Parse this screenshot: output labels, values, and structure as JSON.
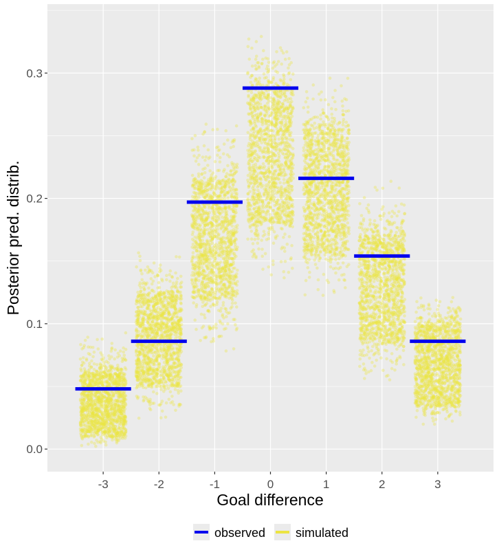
{
  "chart_data": {
    "type": "scatter",
    "title": "",
    "xlabel": "Goal difference",
    "ylabel": "Posterior pred. distrib.",
    "categories": [
      "-3",
      "-2",
      "-1",
      "0",
      "1",
      "2",
      "3"
    ],
    "xlim": [
      -4.0,
      4.0
    ],
    "ylim": [
      -0.018,
      0.355
    ],
    "x_ticks": [
      "-3",
      "-2",
      "-1",
      "0",
      "1",
      "2",
      "3"
    ],
    "y_ticks": [
      0.0,
      0.1,
      0.2,
      0.3
    ],
    "y_tick_labels": [
      "0.0",
      "0.1",
      "0.2",
      "0.3"
    ],
    "grid": true,
    "legend_position": "bottom",
    "series": [
      {
        "name": "observed",
        "kind": "segment",
        "color": "#0000ee",
        "values": [
          0.048,
          0.086,
          0.197,
          0.288,
          0.216,
          0.154,
          0.086
        ]
      },
      {
        "name": "simulated",
        "kind": "jittered points",
        "color": "#ece443",
        "simulated_mean": [
          0.033,
          0.09,
          0.163,
          0.234,
          0.203,
          0.126,
          0.067
        ],
        "simulated_core_range": [
          [
            0.01,
            0.06
          ],
          [
            0.05,
            0.125
          ],
          [
            0.12,
            0.215
          ],
          [
            0.18,
            0.29
          ],
          [
            0.155,
            0.255
          ],
          [
            0.085,
            0.17
          ],
          [
            0.035,
            0.1
          ]
        ],
        "simulated_full_range": [
          [
            0.0,
            0.095
          ],
          [
            0.02,
            0.165
          ],
          [
            0.07,
            0.265
          ],
          [
            0.13,
            0.335
          ],
          [
            0.12,
            0.3
          ],
          [
            0.05,
            0.215
          ],
          [
            0.015,
            0.125
          ]
        ]
      }
    ]
  },
  "legend": {
    "items": [
      {
        "label": "observed",
        "color": "#0000ee"
      },
      {
        "label": "simulated",
        "color": "#ece443"
      }
    ]
  },
  "colors": {
    "panel_background": "#ebebeb",
    "grid_major": "#ffffff",
    "observed": "#0000ee",
    "simulated": "#ece443"
  }
}
